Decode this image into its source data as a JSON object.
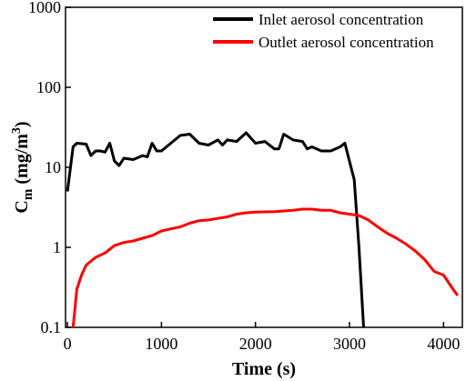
{
  "chart_data": {
    "type": "line",
    "xlabel": "Time (s)",
    "ylabel": {
      "main": "C",
      "sub": "m",
      "rest": "(mg/m",
      "sup": "3",
      "end": ")"
    },
    "xlim": [
      -20,
      4200
    ],
    "xticks": [
      0,
      1000,
      2000,
      3000,
      4000
    ],
    "ylim": [
      0.1,
      1000
    ],
    "yticks": [
      0.1,
      1,
      10,
      100,
      1000
    ],
    "ylog": true,
    "legend": "upper right",
    "series": [
      {
        "name": "Inlet aerosol concentration",
        "color": "#000000",
        "x": [
          0,
          60,
          100,
          200,
          250,
          300,
          350,
          400,
          450,
          500,
          550,
          600,
          700,
          800,
          850,
          900,
          950,
          1000,
          1100,
          1200,
          1300,
          1400,
          1500,
          1600,
          1650,
          1700,
          1800,
          1900,
          2000,
          2100,
          2200,
          2250,
          2300,
          2400,
          2500,
          2550,
          2600,
          2700,
          2800,
          2900,
          2950,
          3050,
          3100,
          3150
        ],
        "values": [
          5,
          18,
          20,
          19.5,
          14,
          16,
          16,
          15.5,
          20,
          12,
          10.5,
          13,
          12.5,
          14,
          13.5,
          20,
          16,
          16,
          20,
          25,
          26,
          20,
          19,
          22,
          19,
          22,
          21,
          27,
          20,
          21,
          17,
          17,
          26,
          22,
          21,
          17,
          18,
          16,
          16,
          18,
          20,
          7,
          1,
          0.1
        ]
      },
      {
        "name": "Outlet aerosol concentration",
        "color": "#ff0000",
        "x": [
          60,
          100,
          150,
          200,
          300,
          400,
          500,
          600,
          700,
          800,
          900,
          1000,
          1100,
          1200,
          1300,
          1400,
          1500,
          1600,
          1700,
          1800,
          1900,
          2000,
          2200,
          2400,
          2500,
          2600,
          2700,
          2800,
          2900,
          3000,
          3100,
          3200,
          3300,
          3400,
          3500,
          3600,
          3700,
          3800,
          3900,
          4000,
          4100,
          4150
        ],
        "values": [
          0.1,
          0.3,
          0.45,
          0.6,
          0.75,
          0.85,
          1.05,
          1.15,
          1.2,
          1.3,
          1.4,
          1.6,
          1.7,
          1.8,
          2.0,
          2.15,
          2.2,
          2.3,
          2.4,
          2.6,
          2.7,
          2.75,
          2.8,
          2.9,
          3.0,
          3.0,
          2.9,
          2.9,
          2.7,
          2.6,
          2.5,
          2.2,
          1.8,
          1.5,
          1.3,
          1.1,
          0.9,
          0.7,
          0.5,
          0.45,
          0.3,
          0.25
        ]
      }
    ]
  }
}
